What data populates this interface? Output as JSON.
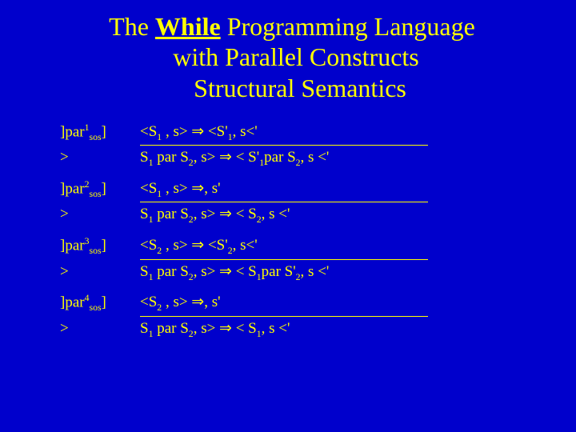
{
  "title": {
    "line1_a": "The ",
    "line1_b": "While",
    "line1_c": " Programming Language",
    "line2": "with Parallel Constructs",
    "line3": "Structural Semantics"
  },
  "rules": {
    "r1": {
      "label_a": "]par",
      "label_sup": "1",
      "label_sub": "sos",
      "label_b": "]",
      "premise_a": "<S",
      "premise_sub1": "1",
      "premise_b": " , s> ⇒ <S'",
      "premise_sub2": "1",
      "premise_c": ", s<'",
      "concl_a": "S",
      "concl_sub1": "1",
      "concl_b": " par S",
      "concl_sub2": "2",
      "concl_c": ", s> ⇒ < S'",
      "concl_sub3": "1",
      "concl_d": "par S",
      "concl_sub4": "2",
      "concl_e": ", s <'"
    },
    "r2": {
      "label_a": "]par",
      "label_sup": "2",
      "label_sub": "sos",
      "label_b": "]",
      "premise_a": "<S",
      "premise_sub1": "1",
      "premise_b": " , s> ⇒, s'",
      "concl_a": "S",
      "concl_sub1": "1",
      "concl_b": " par S",
      "concl_sub2": "2",
      "concl_c": ", s> ⇒ < S",
      "concl_sub3": "2",
      "concl_d": ", s <'"
    },
    "r3": {
      "label_a": "]par",
      "label_sup": "3",
      "label_sub": "sos",
      "label_b": "]",
      "premise_a": "<S",
      "premise_sub1": "2",
      "premise_b": " , s> ⇒ <S'",
      "premise_sub2": "2",
      "premise_c": ", s<'",
      "concl_a": "S",
      "concl_sub1": "1",
      "concl_b": " par S",
      "concl_sub2": "2",
      "concl_c": ", s> ⇒ < S",
      "concl_sub3": "1",
      "concl_d": "par S'",
      "concl_sub4": "2",
      "concl_e": ", s <'"
    },
    "r4": {
      "label_a": "]par",
      "label_sup": "4",
      "label_sub": "sos",
      "label_b": "]",
      "premise_a": "<S",
      "premise_sub1": "2",
      "premise_b": " , s> ⇒, s'",
      "concl_a": "S",
      "concl_sub1": "1",
      "concl_b": " par S",
      "concl_sub2": "2",
      "concl_c": ", s> ⇒ < S",
      "concl_sub3": "1",
      "concl_d": ", s <'"
    }
  },
  "gt": ">",
  "colors": {
    "bg": "#0000cc",
    "fg": "#ffff00"
  }
}
